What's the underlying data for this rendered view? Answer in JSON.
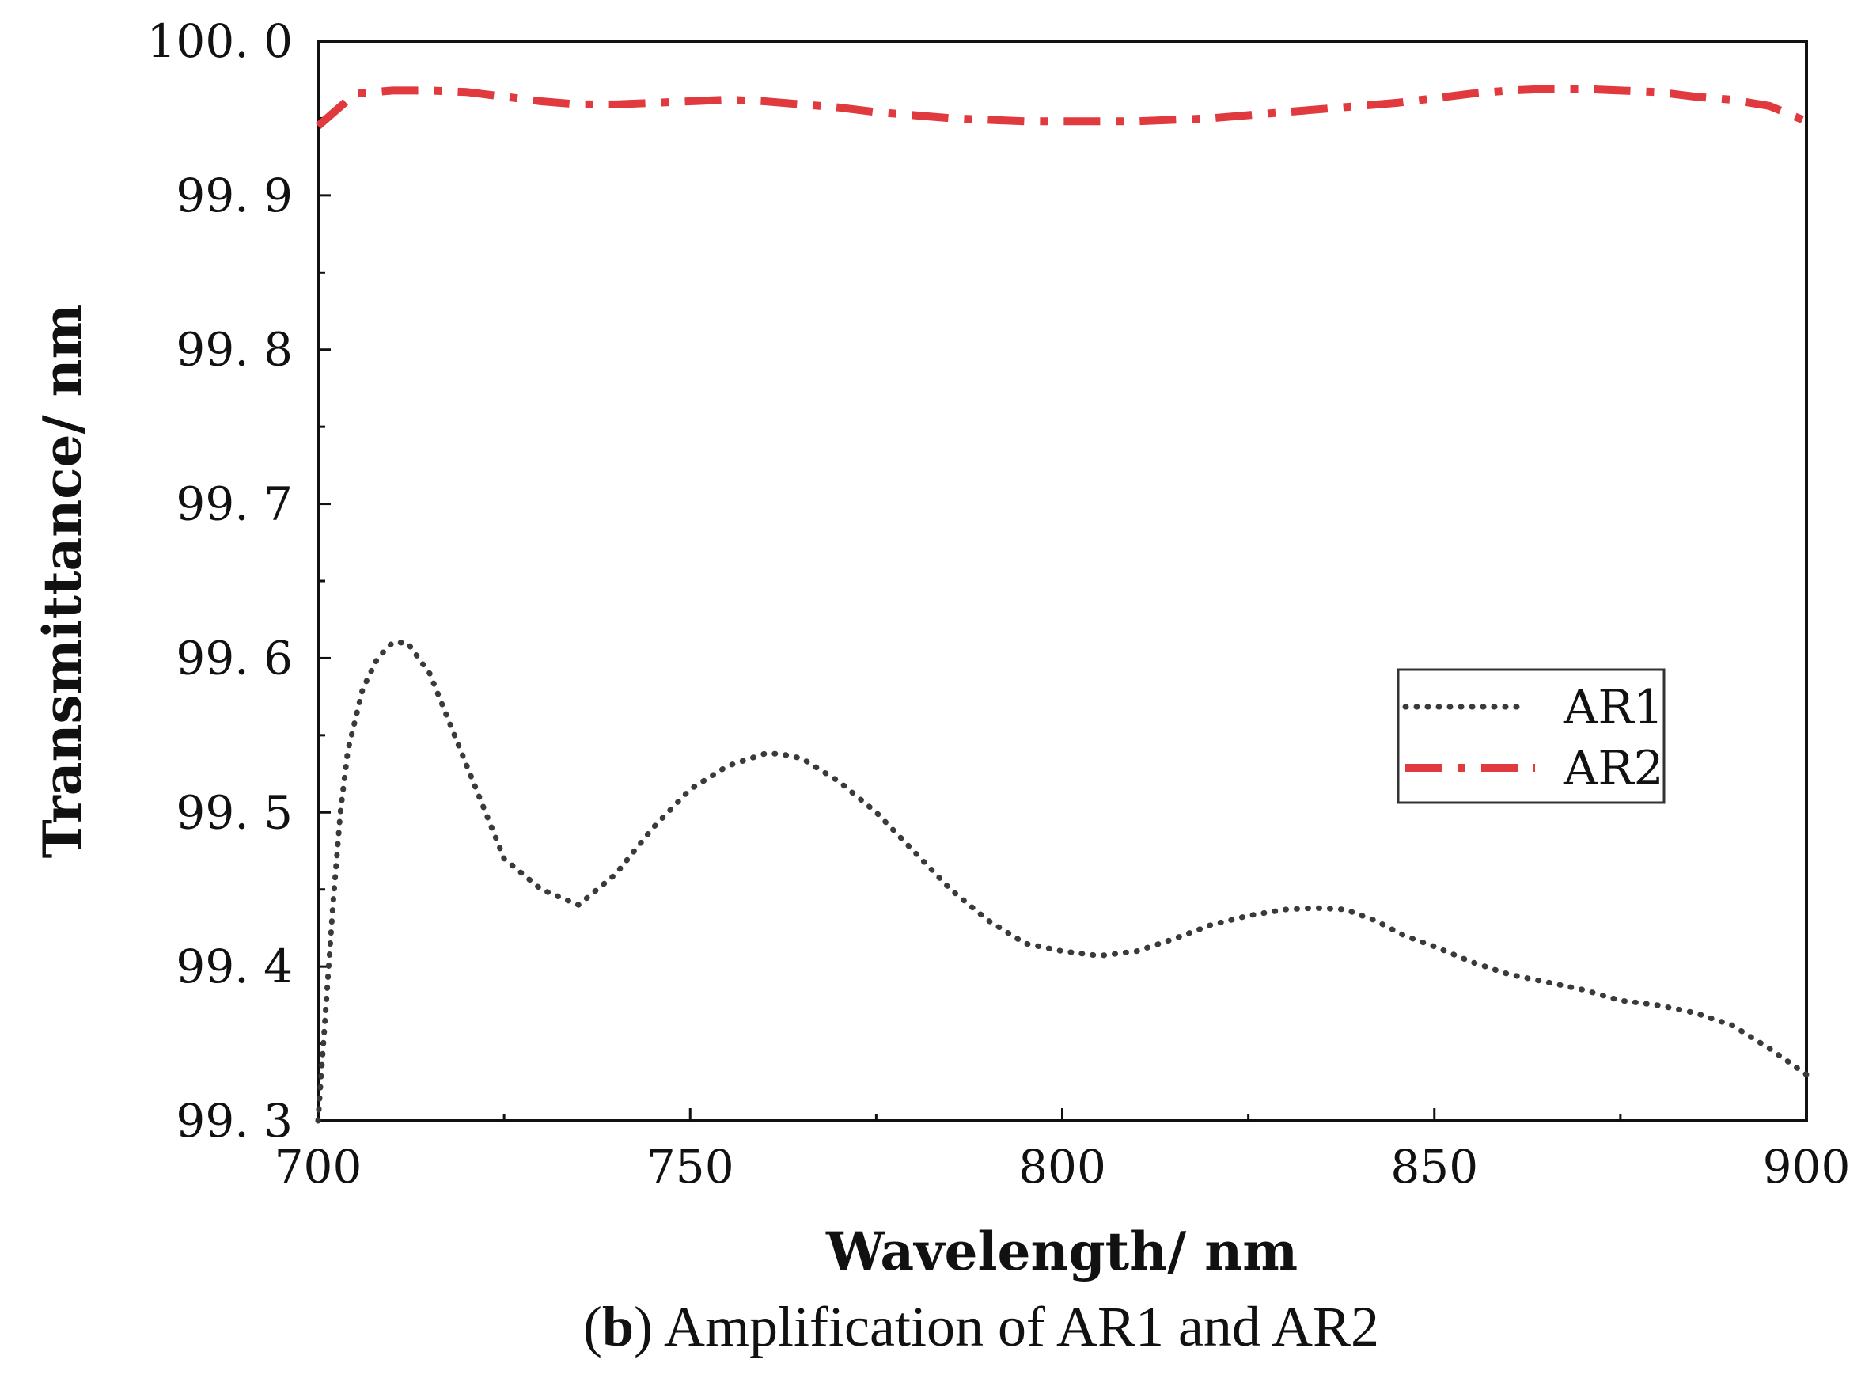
{
  "chart_data": {
    "type": "line",
    "xlabel": "Wavelength/ nm",
    "ylabel": "Transmittance/ nm",
    "xlim": [
      700,
      900
    ],
    "ylim": [
      99.3,
      100.0
    ],
    "x_ticks": [
      700,
      750,
      800,
      850,
      900
    ],
    "x_tick_labels": [
      "700",
      "750",
      "800",
      "850",
      "900"
    ],
    "y_ticks": [
      99.3,
      99.4,
      99.5,
      99.6,
      99.7,
      99.8,
      99.9,
      100.0
    ],
    "y_tick_labels": [
      "99. 3",
      "99. 4",
      "99. 5",
      "99. 6",
      "99. 7",
      "99. 8",
      "99. 9",
      "100. 0"
    ],
    "grid": false,
    "legend_position": "center-right",
    "series": [
      {
        "name": "AR1",
        "style": "dotted",
        "color": "#3a3a3a",
        "x": [
          700,
          701,
          702,
          703,
          704,
          706,
          708,
          710,
          712,
          715,
          720,
          725,
          730,
          735,
          740,
          745,
          750,
          755,
          760,
          762,
          765,
          770,
          775,
          780,
          785,
          790,
          795,
          800,
          805,
          810,
          815,
          820,
          825,
          830,
          834,
          838,
          842,
          846,
          850,
          855,
          860,
          865,
          870,
          875,
          880,
          885,
          890,
          895,
          900
        ],
        "y": [
          99.3,
          99.37,
          99.44,
          99.5,
          99.54,
          99.58,
          99.6,
          99.61,
          99.61,
          99.59,
          99.53,
          99.47,
          99.45,
          99.44,
          99.46,
          99.49,
          99.515,
          99.53,
          99.538,
          99.538,
          99.535,
          99.52,
          99.5,
          99.475,
          99.45,
          99.43,
          99.415,
          99.41,
          99.407,
          99.41,
          99.418,
          99.427,
          99.433,
          99.437,
          99.438,
          99.437,
          99.43,
          99.42,
          99.413,
          99.403,
          99.395,
          99.39,
          99.385,
          99.378,
          99.375,
          99.37,
          99.362,
          99.347,
          99.33
        ]
      },
      {
        "name": "AR2",
        "style": "dash-dot",
        "color": "#e0393e",
        "x": [
          700,
          705,
          710,
          715,
          720,
          725,
          730,
          735,
          740,
          745,
          750,
          755,
          760,
          765,
          770,
          775,
          780,
          785,
          790,
          795,
          800,
          805,
          810,
          815,
          820,
          825,
          830,
          835,
          840,
          845,
          850,
          855,
          860,
          865,
          870,
          875,
          880,
          885,
          890,
          895,
          900
        ],
        "y": [
          99.945,
          99.966,
          99.968,
          99.968,
          99.967,
          99.964,
          99.961,
          99.959,
          99.959,
          99.96,
          99.961,
          99.962,
          99.961,
          99.959,
          99.957,
          99.954,
          99.952,
          99.95,
          99.949,
          99.948,
          99.948,
          99.948,
          99.948,
          99.949,
          99.95,
          99.952,
          99.954,
          99.956,
          99.958,
          99.96,
          99.963,
          99.966,
          99.968,
          99.969,
          99.969,
          99.968,
          99.967,
          99.964,
          99.962,
          99.958,
          99.948
        ]
      }
    ]
  },
  "caption": {
    "letter": "b",
    "open_paren": "(",
    "close_paren": ")",
    "text": " Amplification of AR1 and AR2"
  }
}
